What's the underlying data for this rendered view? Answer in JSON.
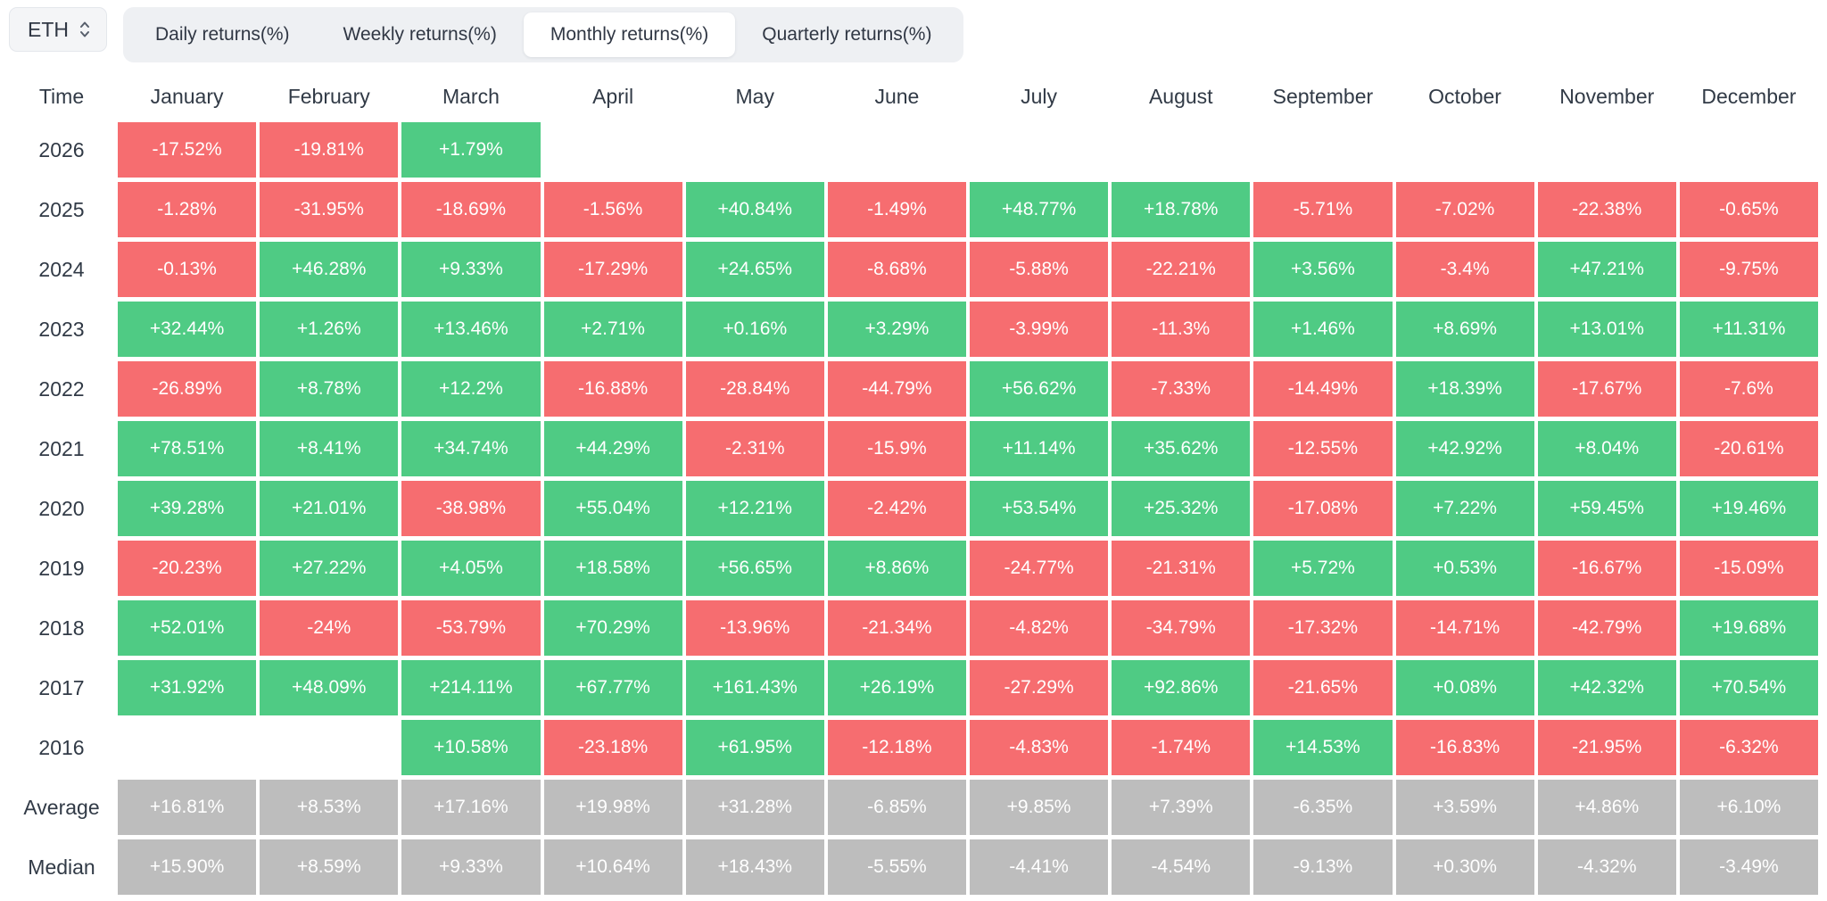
{
  "toolbar": {
    "symbol_select": {
      "value": "ETH",
      "icon": "updown-chevron-icon"
    },
    "tabs": [
      {
        "id": "daily",
        "label": "Daily returns(%)",
        "active": false
      },
      {
        "id": "weekly",
        "label": "Weekly returns(%)",
        "active": false
      },
      {
        "id": "monthly",
        "label": "Monthly returns(%)",
        "active": true
      },
      {
        "id": "quarterly",
        "label": "Quarterly returns(%)",
        "active": false
      }
    ]
  },
  "chart_data": {
    "type": "heatmap",
    "title": "ETH Monthly returns(%)",
    "corner_label": "Time",
    "columns": [
      "January",
      "February",
      "March",
      "April",
      "May",
      "June",
      "July",
      "August",
      "September",
      "October",
      "November",
      "December"
    ],
    "rows": [
      {
        "label": "2026",
        "aggregate": false,
        "cells": [
          "-17.52%",
          "-19.81%",
          "+1.79%",
          "",
          "",
          "",
          "",
          "",
          "",
          "",
          "",
          ""
        ]
      },
      {
        "label": "2025",
        "aggregate": false,
        "cells": [
          "-1.28%",
          "-31.95%",
          "-18.69%",
          "-1.56%",
          "+40.84%",
          "-1.49%",
          "+48.77%",
          "+18.78%",
          "-5.71%",
          "-7.02%",
          "-22.38%",
          "-0.65%"
        ]
      },
      {
        "label": "2024",
        "aggregate": false,
        "cells": [
          "-0.13%",
          "+46.28%",
          "+9.33%",
          "-17.29%",
          "+24.65%",
          "-8.68%",
          "-5.88%",
          "-22.21%",
          "+3.56%",
          "-3.4%",
          "+47.21%",
          "-9.75%"
        ]
      },
      {
        "label": "2023",
        "aggregate": false,
        "cells": [
          "+32.44%",
          "+1.26%",
          "+13.46%",
          "+2.71%",
          "+0.16%",
          "+3.29%",
          "-3.99%",
          "-11.3%",
          "+1.46%",
          "+8.69%",
          "+13.01%",
          "+11.31%"
        ]
      },
      {
        "label": "2022",
        "aggregate": false,
        "cells": [
          "-26.89%",
          "+8.78%",
          "+12.2%",
          "-16.88%",
          "-28.84%",
          "-44.79%",
          "+56.62%",
          "-7.33%",
          "-14.49%",
          "+18.39%",
          "-17.67%",
          "-7.6%"
        ]
      },
      {
        "label": "2021",
        "aggregate": false,
        "cells": [
          "+78.51%",
          "+8.41%",
          "+34.74%",
          "+44.29%",
          "-2.31%",
          "-15.9%",
          "+11.14%",
          "+35.62%",
          "-12.55%",
          "+42.92%",
          "+8.04%",
          "-20.61%"
        ]
      },
      {
        "label": "2020",
        "aggregate": false,
        "cells": [
          "+39.28%",
          "+21.01%",
          "-38.98%",
          "+55.04%",
          "+12.21%",
          "-2.42%",
          "+53.54%",
          "+25.32%",
          "-17.08%",
          "+7.22%",
          "+59.45%",
          "+19.46%"
        ]
      },
      {
        "label": "2019",
        "aggregate": false,
        "cells": [
          "-20.23%",
          "+27.22%",
          "+4.05%",
          "+18.58%",
          "+56.65%",
          "+8.86%",
          "-24.77%",
          "-21.31%",
          "+5.72%",
          "+0.53%",
          "-16.67%",
          "-15.09%"
        ]
      },
      {
        "label": "2018",
        "aggregate": false,
        "cells": [
          "+52.01%",
          "-24%",
          "-53.79%",
          "+70.29%",
          "-13.96%",
          "-21.34%",
          "-4.82%",
          "-34.79%",
          "-17.32%",
          "-14.71%",
          "-42.79%",
          "+19.68%"
        ]
      },
      {
        "label": "2017",
        "aggregate": false,
        "cells": [
          "+31.92%",
          "+48.09%",
          "+214.11%",
          "+67.77%",
          "+161.43%",
          "+26.19%",
          "-27.29%",
          "+92.86%",
          "-21.65%",
          "+0.08%",
          "+42.32%",
          "+70.54%"
        ]
      },
      {
        "label": "2016",
        "aggregate": false,
        "cells": [
          "",
          "",
          "+10.58%",
          "-23.18%",
          "+61.95%",
          "-12.18%",
          "-4.83%",
          "-1.74%",
          "+14.53%",
          "-16.83%",
          "-21.95%",
          "-6.32%"
        ]
      },
      {
        "label": "Average",
        "aggregate": true,
        "cells": [
          "+16.81%",
          "+8.53%",
          "+17.16%",
          "+19.98%",
          "+31.28%",
          "-6.85%",
          "+9.85%",
          "+7.39%",
          "-6.35%",
          "+3.59%",
          "+4.86%",
          "+6.10%"
        ]
      },
      {
        "label": "Median",
        "aggregate": true,
        "cells": [
          "+15.90%",
          "+8.59%",
          "+9.33%",
          "+10.64%",
          "+18.43%",
          "-5.55%",
          "-4.41%",
          "-4.54%",
          "-9.13%",
          "+0.30%",
          "-4.32%",
          "-3.49%"
        ]
      }
    ],
    "colors": {
      "positive": "#4fcb84",
      "negative": "#f66d70",
      "aggregate": "#bdbdbd",
      "header_text": "#313a46"
    },
    "legend_position": "none",
    "grid": false
  }
}
